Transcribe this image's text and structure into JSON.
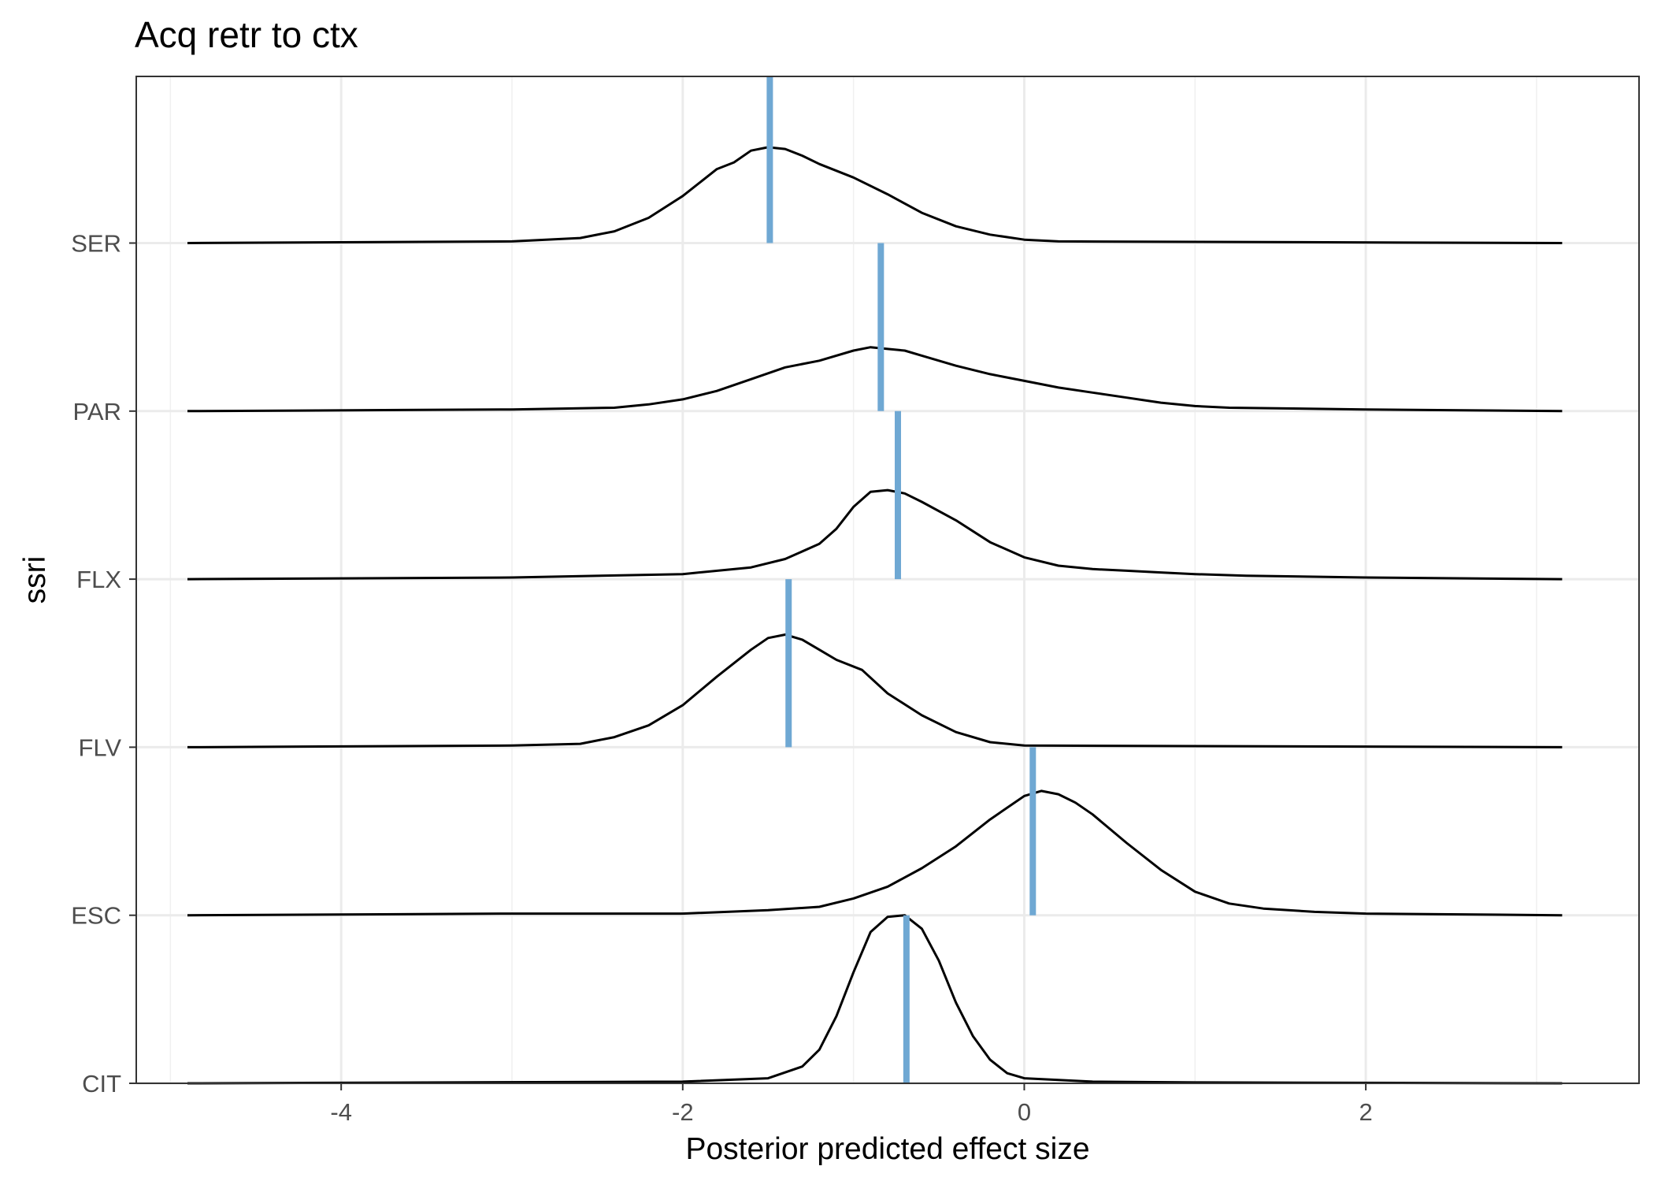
{
  "chart_data": {
    "type": "ridgeline",
    "title": "Acq retr to ctx",
    "xlabel": "Posterior predicted effect size",
    "ylabel": "ssri",
    "xlim": [
      -5.2,
      3.6
    ],
    "x_ticks": [
      -4,
      -2,
      0,
      2
    ],
    "x_tick_labels": [
      "-4",
      "-2",
      "0",
      "2"
    ],
    "grid": true,
    "line_color": "#000000",
    "marker_color": "#6fa8d3",
    "categories": [
      "CIT",
      "ESC",
      "FLV",
      "FLX",
      "PAR",
      "SER"
    ],
    "series": [
      {
        "name": "CIT",
        "marker_x": -0.69,
        "density": [
          [
            -4.9,
            0
          ],
          [
            -2.0,
            0.01
          ],
          [
            -1.5,
            0.03
          ],
          [
            -1.3,
            0.1
          ],
          [
            -1.2,
            0.2
          ],
          [
            -1.1,
            0.4
          ],
          [
            -1.0,
            0.66
          ],
          [
            -0.9,
            0.9
          ],
          [
            -0.8,
            0.99
          ],
          [
            -0.7,
            1.0
          ],
          [
            -0.6,
            0.92
          ],
          [
            -0.5,
            0.73
          ],
          [
            -0.4,
            0.48
          ],
          [
            -0.3,
            0.28
          ],
          [
            -0.2,
            0.14
          ],
          [
            -0.1,
            0.06
          ],
          [
            0,
            0.03
          ],
          [
            0.2,
            0.02
          ],
          [
            0.4,
            0.01
          ],
          [
            1.0,
            0.005
          ],
          [
            3.15,
            0
          ]
        ]
      },
      {
        "name": "ESC",
        "marker_x": 0.05,
        "density": [
          [
            -4.9,
            0
          ],
          [
            -3.0,
            0.01
          ],
          [
            -2.0,
            0.01
          ],
          [
            -1.5,
            0.03
          ],
          [
            -1.2,
            0.05
          ],
          [
            -1.0,
            0.1
          ],
          [
            -0.8,
            0.17
          ],
          [
            -0.6,
            0.28
          ],
          [
            -0.4,
            0.41
          ],
          [
            -0.2,
            0.57
          ],
          [
            0,
            0.71
          ],
          [
            0.1,
            0.74
          ],
          [
            0.2,
            0.72
          ],
          [
            0.3,
            0.67
          ],
          [
            0.4,
            0.6
          ],
          [
            0.6,
            0.43
          ],
          [
            0.8,
            0.27
          ],
          [
            1.0,
            0.14
          ],
          [
            1.2,
            0.07
          ],
          [
            1.4,
            0.04
          ],
          [
            1.7,
            0.02
          ],
          [
            2.0,
            0.01
          ],
          [
            3.15,
            0
          ]
        ]
      },
      {
        "name": "FLV",
        "marker_x": -1.38,
        "density": [
          [
            -4.9,
            0
          ],
          [
            -3.0,
            0.01
          ],
          [
            -2.6,
            0.02
          ],
          [
            -2.4,
            0.06
          ],
          [
            -2.2,
            0.13
          ],
          [
            -2.0,
            0.25
          ],
          [
            -1.8,
            0.42
          ],
          [
            -1.6,
            0.58
          ],
          [
            -1.5,
            0.65
          ],
          [
            -1.4,
            0.67
          ],
          [
            -1.3,
            0.64
          ],
          [
            -1.2,
            0.58
          ],
          [
            -1.1,
            0.52
          ],
          [
            -0.95,
            0.46
          ],
          [
            -0.8,
            0.32
          ],
          [
            -0.6,
            0.19
          ],
          [
            -0.4,
            0.09
          ],
          [
            -0.2,
            0.03
          ],
          [
            0,
            0.01
          ],
          [
            3.15,
            0
          ]
        ]
      },
      {
        "name": "FLX",
        "marker_x": -0.74,
        "density": [
          [
            -4.9,
            0
          ],
          [
            -3.0,
            0.01
          ],
          [
            -2.0,
            0.03
          ],
          [
            -1.6,
            0.07
          ],
          [
            -1.4,
            0.12
          ],
          [
            -1.2,
            0.21
          ],
          [
            -1.1,
            0.3
          ],
          [
            -1.0,
            0.43
          ],
          [
            -0.9,
            0.52
          ],
          [
            -0.8,
            0.53
          ],
          [
            -0.7,
            0.51
          ],
          [
            -0.6,
            0.46
          ],
          [
            -0.4,
            0.35
          ],
          [
            -0.2,
            0.22
          ],
          [
            0,
            0.13
          ],
          [
            0.2,
            0.08
          ],
          [
            0.4,
            0.06
          ],
          [
            0.6,
            0.05
          ],
          [
            0.8,
            0.04
          ],
          [
            1.0,
            0.03
          ],
          [
            1.3,
            0.02
          ],
          [
            2.0,
            0.01
          ],
          [
            3.15,
            0
          ]
        ]
      },
      {
        "name": "PAR",
        "marker_x": -0.84,
        "density": [
          [
            -4.9,
            0
          ],
          [
            -3.0,
            0.01
          ],
          [
            -2.4,
            0.02
          ],
          [
            -2.2,
            0.04
          ],
          [
            -2.0,
            0.07
          ],
          [
            -1.8,
            0.12
          ],
          [
            -1.6,
            0.19
          ],
          [
            -1.4,
            0.26
          ],
          [
            -1.2,
            0.3
          ],
          [
            -1.0,
            0.36
          ],
          [
            -0.9,
            0.38
          ],
          [
            -0.8,
            0.37
          ],
          [
            -0.7,
            0.36
          ],
          [
            -0.6,
            0.33
          ],
          [
            -0.4,
            0.27
          ],
          [
            -0.2,
            0.22
          ],
          [
            0,
            0.18
          ],
          [
            0.2,
            0.14
          ],
          [
            0.4,
            0.11
          ],
          [
            0.6,
            0.08
          ],
          [
            0.8,
            0.05
          ],
          [
            1.0,
            0.03
          ],
          [
            1.2,
            0.02
          ],
          [
            2.0,
            0.01
          ],
          [
            3.15,
            0
          ]
        ]
      },
      {
        "name": "SER",
        "marker_x": -1.49,
        "density": [
          [
            -4.9,
            0
          ],
          [
            -3.0,
            0.01
          ],
          [
            -2.6,
            0.03
          ],
          [
            -2.4,
            0.07
          ],
          [
            -2.2,
            0.15
          ],
          [
            -2.0,
            0.28
          ],
          [
            -1.8,
            0.44
          ],
          [
            -1.7,
            0.48
          ],
          [
            -1.6,
            0.55
          ],
          [
            -1.5,
            0.57
          ],
          [
            -1.4,
            0.56
          ],
          [
            -1.3,
            0.52
          ],
          [
            -1.2,
            0.47
          ],
          [
            -1.0,
            0.39
          ],
          [
            -0.8,
            0.29
          ],
          [
            -0.6,
            0.18
          ],
          [
            -0.4,
            0.1
          ],
          [
            -0.2,
            0.05
          ],
          [
            0,
            0.02
          ],
          [
            0.2,
            0.01
          ],
          [
            3.15,
            0
          ]
        ]
      }
    ]
  }
}
